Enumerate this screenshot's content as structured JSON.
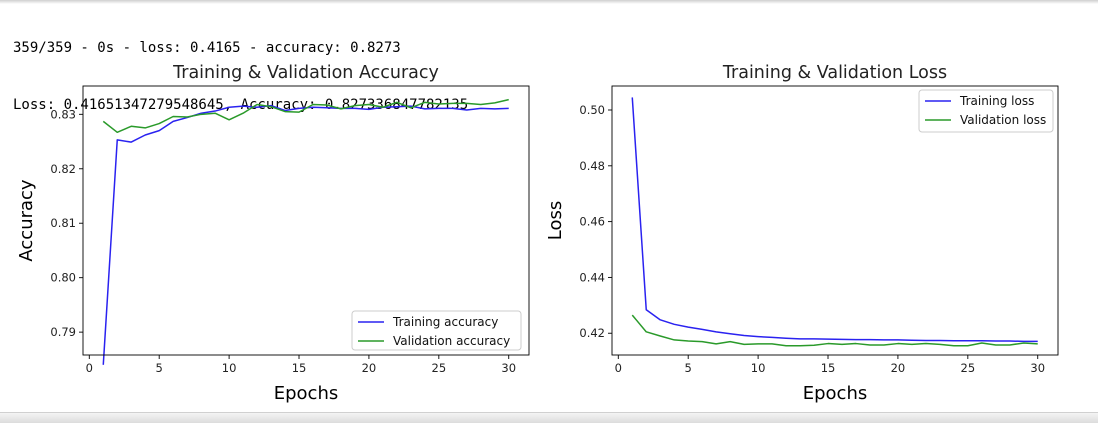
{
  "console": {
    "line1": "359/359 - 0s - loss: 0.4165 - accuracy: 0.8273",
    "line2": "Loss: 0.41651347279548645, Accuracy: 0.827336847782135"
  },
  "chart_data": [
    {
      "type": "line",
      "title": "Training & Validation Accuracy",
      "xlabel": "Epochs",
      "ylabel": "Accuracy",
      "xlim": [
        -0.45,
        31.45
      ],
      "ylim": [
        0.7858,
        0.8352
      ],
      "xticks": [
        0,
        5,
        10,
        15,
        20,
        25,
        30
      ],
      "yticks": [
        0.79,
        0.8,
        0.81,
        0.82,
        0.83
      ],
      "ytick_labels": [
        "0.79",
        "0.80",
        "0.81",
        "0.82",
        "0.83"
      ],
      "grid": false,
      "legend_position": "lower-right",
      "x": [
        1,
        2,
        3,
        4,
        5,
        6,
        7,
        8,
        9,
        10,
        11,
        12,
        13,
        14,
        15,
        16,
        17,
        18,
        19,
        20,
        21,
        22,
        23,
        24,
        25,
        26,
        27,
        28,
        29,
        30
      ],
      "series": [
        {
          "name": "Training accuracy",
          "color": "#2a22f0",
          "values": [
            0.784,
            0.8253,
            0.8249,
            0.8262,
            0.827,
            0.8287,
            0.8294,
            0.8302,
            0.8306,
            0.8313,
            0.8315,
            0.8313,
            0.8316,
            0.8307,
            0.8311,
            0.8313,
            0.8312,
            0.8311,
            0.8311,
            0.8309,
            0.8313,
            0.8314,
            0.8315,
            0.831,
            0.8311,
            0.8311,
            0.8308,
            0.8311,
            0.831,
            0.8311
          ]
        },
        {
          "name": "Validation accuracy",
          "color": "#2a9a2a",
          "values": [
            0.8287,
            0.8267,
            0.8278,
            0.8275,
            0.8283,
            0.8296,
            0.8295,
            0.83,
            0.8302,
            0.829,
            0.8302,
            0.8318,
            0.8314,
            0.8305,
            0.8304,
            0.8318,
            0.8317,
            0.831,
            0.8316,
            0.8318,
            0.8313,
            0.8322,
            0.8312,
            0.8322,
            0.8319,
            0.832,
            0.832,
            0.8318,
            0.8321,
            0.8327
          ]
        }
      ]
    },
    {
      "type": "line",
      "title": "Training & Validation Loss",
      "xlabel": "Epochs",
      "ylabel": "Loss",
      "xlim": [
        -0.45,
        31.45
      ],
      "ylim": [
        0.4122,
        0.5086
      ],
      "xticks": [
        0,
        5,
        10,
        15,
        20,
        25,
        30
      ],
      "yticks": [
        0.42,
        0.44,
        0.46,
        0.48,
        0.5
      ],
      "ytick_labels": [
        "0.42",
        "0.44",
        "0.46",
        "0.48",
        "0.50"
      ],
      "grid": false,
      "legend_position": "upper-right",
      "x": [
        1,
        2,
        3,
        4,
        5,
        6,
        7,
        8,
        9,
        10,
        11,
        12,
        13,
        14,
        15,
        16,
        17,
        18,
        19,
        20,
        21,
        22,
        23,
        24,
        25,
        26,
        27,
        28,
        29,
        30
      ],
      "series": [
        {
          "name": "Training loss",
          "color": "#2a22f0",
          "values": [
            0.5045,
            0.4284,
            0.4248,
            0.4232,
            0.4222,
            0.4214,
            0.4205,
            0.4198,
            0.4192,
            0.4188,
            0.4185,
            0.4182,
            0.418,
            0.418,
            0.4179,
            0.4178,
            0.4177,
            0.4177,
            0.4176,
            0.4176,
            0.4175,
            0.4174,
            0.4174,
            0.4173,
            0.4173,
            0.4173,
            0.4172,
            0.4172,
            0.4171,
            0.4171
          ]
        },
        {
          "name": "Validation loss",
          "color": "#2a9a2a",
          "values": [
            0.4265,
            0.4205,
            0.419,
            0.4176,
            0.4172,
            0.417,
            0.4162,
            0.417,
            0.416,
            0.4162,
            0.4162,
            0.4155,
            0.4155,
            0.4157,
            0.4163,
            0.416,
            0.4163,
            0.4158,
            0.4158,
            0.4163,
            0.416,
            0.4163,
            0.416,
            0.4155,
            0.4155,
            0.4165,
            0.4158,
            0.4158,
            0.4165,
            0.4162
          ]
        }
      ]
    }
  ]
}
